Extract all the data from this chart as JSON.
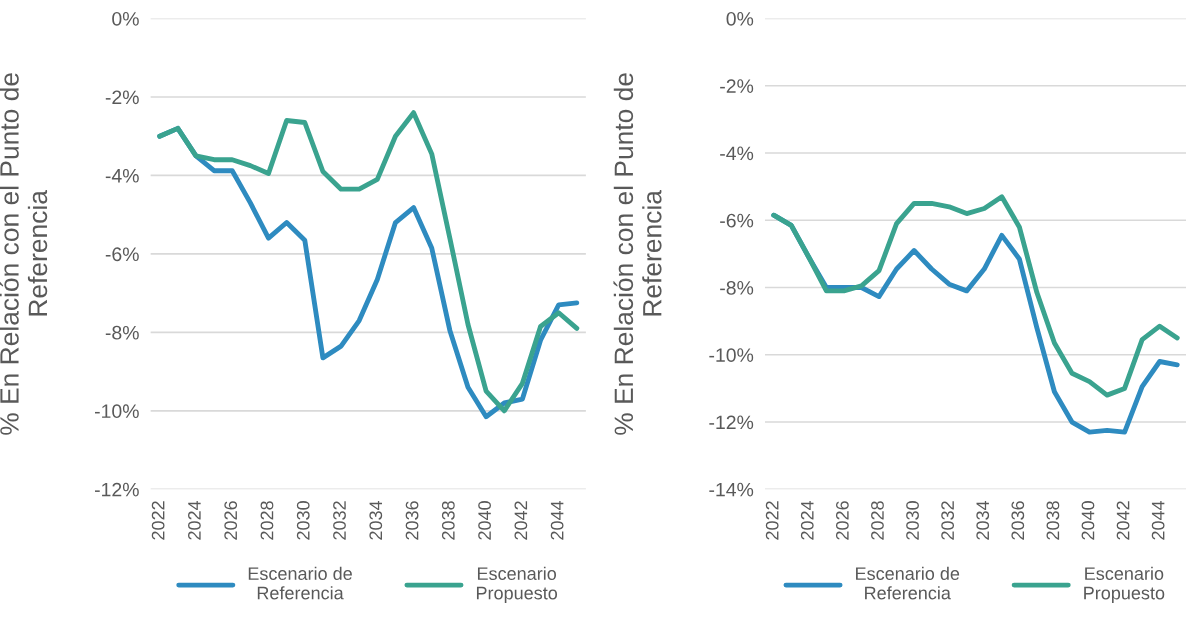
{
  "chart_data": [
    {
      "type": "line",
      "ylabel": "% En Relación con el Punto de\nReferencia",
      "x": [
        2022,
        2023,
        2024,
        2025,
        2026,
        2027,
        2028,
        2029,
        2030,
        2031,
        2032,
        2033,
        2034,
        2035,
        2036,
        2037,
        2038,
        2039,
        2040,
        2041,
        2042,
        2043,
        2044,
        2045
      ],
      "series": [
        {
          "name": "Escenario de\nReferencia",
          "color": "#2e8bc0",
          "values": [
            -3.0,
            -2.8,
            -3.5,
            -3.88,
            -3.88,
            -4.7,
            -5.6,
            -5.2,
            -5.65,
            -8.65,
            -8.35,
            -7.7,
            -6.65,
            -5.2,
            -4.82,
            -5.85,
            -7.95,
            -9.4,
            -10.15,
            -9.8,
            -9.7,
            -8.2,
            -7.3,
            -7.25
          ]
        },
        {
          "name": "Escenario\nPropuesto",
          "color": "#3aa38f",
          "values": [
            -3.0,
            -2.8,
            -3.5,
            -3.6,
            -3.6,
            -3.75,
            -3.95,
            -2.6,
            -2.65,
            -3.9,
            -4.35,
            -4.35,
            -4.1,
            -3.0,
            -2.4,
            -3.45,
            -5.6,
            -7.8,
            -9.5,
            -10.0,
            -9.3,
            -7.85,
            -7.5,
            -7.9
          ]
        }
      ],
      "xlim": [
        2021.5,
        2045.5
      ],
      "xticks": [
        2022,
        2024,
        2026,
        2028,
        2030,
        2032,
        2034,
        2036,
        2038,
        2040,
        2042,
        2044
      ],
      "ylim": [
        -12,
        0
      ],
      "yticks": [
        {
          "value": 0,
          "label": "0%"
        },
        {
          "value": -2,
          "label": "-2%"
        },
        {
          "value": -4,
          "label": "-4%"
        },
        {
          "value": -6,
          "label": "-6%"
        },
        {
          "value": -8,
          "label": "-8%"
        },
        {
          "value": -10,
          "label": "-10%"
        },
        {
          "value": -12,
          "label": "-12%"
        }
      ],
      "grid": "y",
      "legend": "bottom",
      "marker": "none",
      "line_style": "solid"
    },
    {
      "type": "line",
      "ylabel": "% En Relación con el Punto de\nReferencia",
      "x": [
        2022,
        2023,
        2024,
        2025,
        2026,
        2027,
        2028,
        2029,
        2030,
        2031,
        2032,
        2033,
        2034,
        2035,
        2036,
        2037,
        2038,
        2039,
        2040,
        2041,
        2042,
        2043,
        2044,
        2045
      ],
      "series": [
        {
          "name": "Escenario de\nReferencia",
          "color": "#2e8bc0",
          "values": [
            -5.85,
            -6.15,
            -7.1,
            -8.0,
            -8.0,
            -8.0,
            -8.27,
            -7.45,
            -6.9,
            -7.45,
            -7.9,
            -8.1,
            -7.45,
            -6.45,
            -7.15,
            -9.2,
            -11.1,
            -12.0,
            -12.3,
            -12.25,
            -12.3,
            -10.95,
            -10.2,
            -10.3
          ]
        },
        {
          "name": "Escenario\nPropuesto",
          "color": "#3aa38f",
          "values": [
            -5.85,
            -6.15,
            -7.1,
            -8.1,
            -8.1,
            -7.95,
            -7.5,
            -6.1,
            -5.5,
            -5.5,
            -5.6,
            -5.8,
            -5.65,
            -5.3,
            -6.2,
            -8.15,
            -9.65,
            -10.55,
            -10.8,
            -11.2,
            -11.0,
            -9.55,
            -9.15,
            -9.5
          ]
        }
      ],
      "xlim": [
        2021.5,
        2045.5
      ],
      "xticks": [
        2022,
        2024,
        2026,
        2028,
        2030,
        2032,
        2034,
        2036,
        2038,
        2040,
        2042,
        2044
      ],
      "ylim": [
        -14,
        0
      ],
      "yticks": [
        {
          "value": 0,
          "label": "0%"
        },
        {
          "value": -2,
          "label": "-2%"
        },
        {
          "value": -4,
          "label": "-4%"
        },
        {
          "value": -6,
          "label": "-6%"
        },
        {
          "value": -8,
          "label": "-8%"
        },
        {
          "value": -10,
          "label": "-10%"
        },
        {
          "value": -12,
          "label": "-12%"
        },
        {
          "value": -14,
          "label": "-14%"
        }
      ],
      "grid": "y",
      "legend": "bottom",
      "marker": "none",
      "line_style": "solid"
    }
  ]
}
